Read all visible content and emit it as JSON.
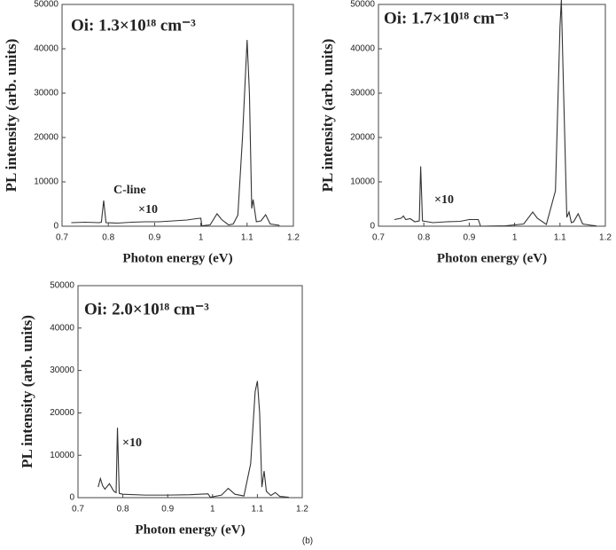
{
  "chart_data": [
    {
      "type": "line",
      "title": "Oi: 1.3×10¹⁸ cm⁻³",
      "xlabel": "Photon energy (eV)",
      "ylabel": "PL intensity (arb. units)",
      "annotations": [
        "C-line",
        "×10"
      ],
      "xlim": [
        0.7,
        1.2
      ],
      "xticks": [
        0.7,
        0.8,
        0.9,
        1,
        1.1,
        1.2
      ],
      "ylim": [
        0,
        50000
      ],
      "yticks": [
        0,
        10000,
        20000,
        30000,
        40000,
        50000
      ],
      "series": [
        {
          "color": "#333333",
          "x": [
            0.72,
            0.75,
            0.78,
            0.785,
            0.79,
            0.795,
            0.82,
            0.85,
            0.88,
            0.91,
            0.94,
            0.97,
            0.99,
            1.0,
            1.002,
            1.02,
            1.035,
            1.045,
            1.06,
            1.07,
            1.08,
            1.09,
            1.1,
            1.105,
            1.11,
            1.113,
            1.12,
            1.13,
            1.14,
            1.15,
            1.17
          ],
          "values": [
            800,
            900,
            800,
            900,
            5800,
            800,
            700,
            900,
            1000,
            1000,
            1200,
            1400,
            1700,
            1800,
            100,
            300,
            2800,
            1500,
            300,
            500,
            2500,
            20000,
            42000,
            30000,
            4000,
            6000,
            1000,
            1200,
            2600,
            500,
            200
          ]
        }
      ]
    },
    {
      "type": "line",
      "title": "Oi: 1.7×10¹⁸ cm⁻³",
      "xlabel": "Photon energy (eV)",
      "ylabel": "PL intensity (arb. units)",
      "annotations": [
        "×10"
      ],
      "xlim": [
        0.7,
        1.2
      ],
      "xticks": [
        0.7,
        0.8,
        0.9,
        1,
        1.1,
        1.2
      ],
      "ylim": [
        0,
        50000
      ],
      "yticks": [
        0,
        10000,
        20000,
        30000,
        40000,
        50000
      ],
      "series": [
        {
          "color": "#333333",
          "x": [
            0.735,
            0.75,
            0.755,
            0.76,
            0.77,
            0.78,
            0.79,
            0.793,
            0.797,
            0.82,
            0.85,
            0.88,
            0.9,
            0.92,
            0.925,
            0.98,
            1.02,
            1.04,
            1.05,
            1.07,
            1.09,
            1.1,
            1.103,
            1.108,
            1.115,
            1.12,
            1.125,
            1.13,
            1.14,
            1.15,
            1.17,
            1.18
          ],
          "values": [
            1500,
            1800,
            2300,
            1500,
            1700,
            1000,
            1200,
            13500,
            1200,
            800,
            1000,
            1100,
            1500,
            1500,
            0,
            100,
            500,
            3200,
            1800,
            400,
            8000,
            45000,
            51000,
            30000,
            2000,
            3200,
            800,
            1000,
            2800,
            500,
            200,
            100
          ]
        }
      ]
    },
    {
      "type": "line",
      "title": "Oi: 2.0×10¹⁸ cm⁻³",
      "xlabel": "Photon energy (eV)",
      "ylabel": "PL intensity (arb. units)",
      "annotations": [
        "×10"
      ],
      "xlim": [
        0.7,
        1.2
      ],
      "xticks": [
        0.7,
        0.8,
        0.9,
        1,
        1.1,
        1.2
      ],
      "ylim": [
        0,
        50000
      ],
      "yticks": [
        0,
        10000,
        20000,
        30000,
        40000,
        50000
      ],
      "series": [
        {
          "color": "#333333",
          "x": [
            0.745,
            0.75,
            0.755,
            0.76,
            0.77,
            0.78,
            0.785,
            0.788,
            0.792,
            0.8,
            0.85,
            0.9,
            0.95,
            0.99,
            0.995,
            1.02,
            1.035,
            1.05,
            1.07,
            1.085,
            1.095,
            1.1,
            1.105,
            1.11,
            1.115,
            1.12,
            1.13,
            1.14,
            1.15,
            1.17
          ],
          "values": [
            2500,
            4500,
            2800,
            2000,
            3300,
            1500,
            1200,
            16500,
            1000,
            800,
            600,
            600,
            700,
            900,
            100,
            600,
            2200,
            800,
            400,
            8000,
            25000,
            27500,
            20000,
            2500,
            6300,
            1500,
            500,
            1200,
            300,
            100
          ]
        }
      ]
    }
  ],
  "caption": "(b)"
}
